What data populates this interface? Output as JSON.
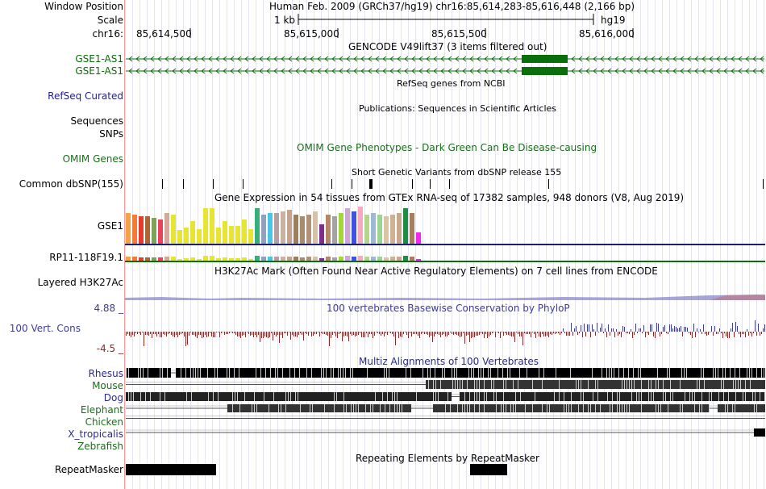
{
  "labels": {
    "window_position": "Window Position",
    "scale": "Scale",
    "chrom": "chr16:",
    "gencode1": "GSE1-AS1",
    "gencode2": "GSE1-AS1",
    "refseq": "RefSeq Curated",
    "sequences": "Sequences",
    "snps": "SNPs",
    "omim": "OMIM Genes",
    "dbsnp": "Common dbSNP(155)",
    "gse1": "GSE1",
    "rp11": "RP11-118F19.1",
    "h3k27ac": "Layered H3K27Ac",
    "phylop_max": "4.88 _",
    "cons": "100 Vert. Cons",
    "phylop_min": "-4.5 _",
    "repeatmasker": "RepeatMasker"
  },
  "header": {
    "position_text": "Human Feb. 2009 (GRCh37/hg19)   chr16:85,614,283-85,616,448 (2,166 bp)",
    "scale_bar": "1 kb",
    "assembly": "hg19",
    "ticks": [
      "85,614,500",
      "85,615,000",
      "85,615,500",
      "85,616,000"
    ]
  },
  "track_titles": {
    "gencode": "GENCODE V49lift37 (3 items filtered out)",
    "refseq": "RefSeq genes from NCBI",
    "publications": "Publications: Sequences in Scientific Articles",
    "omim": "OMIM Gene Phenotypes - Dark Green Can Be Disease-causing",
    "dbsnp": "Short Genetic Variants from dbSNP release 155",
    "gtex": "Gene Expression in 54 tissues from GTEx RNA-seq of 17382 samples, 948 donors (V8, Aug 2019)",
    "h3k27ac": "H3K27Ac Mark (Often Found Near Active Regulatory Elements) on 7 cell lines from ENCODE",
    "phylop": "100 vertebrates Basewise Conservation by PhyloP",
    "multiz": "Multiz Alignments of 100 Vertebrates",
    "repeatmasker": "Repeating Elements by RepeatMasker"
  },
  "species": [
    "Rhesus",
    "Mouse",
    "Dog",
    "Elephant",
    "Chicken",
    "X_tropicalis",
    "Zebrafish"
  ],
  "colors": {
    "gencode_green": "#0a6e0a",
    "refseq_blue": "#1e1e8c",
    "omim_green": "#1a6e1a",
    "phylop_blue": "#3c3c9c",
    "phylop_red": "#8c2a2a",
    "multiz_blue": "#2a2a8c",
    "gtex_line": "#1e1e6e"
  }
}
